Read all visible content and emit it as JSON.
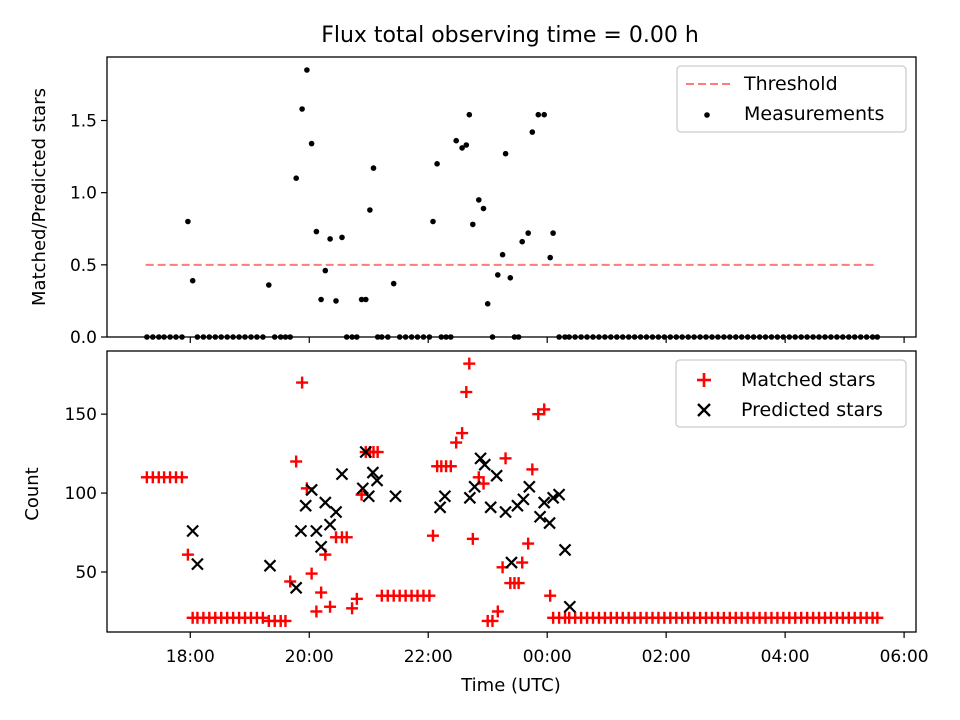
{
  "chart_data": [
    {
      "type": "scatter",
      "title": "Flux total observing time = 0.00 h",
      "xlabel": "",
      "ylabel": "Matched/Predicted stars",
      "xlim": [
        16.6,
        30.2
      ],
      "ylim": [
        0.0,
        1.94
      ],
      "yticks": [
        0.0,
        0.5,
        1.0,
        1.5
      ],
      "ytick_labels": [
        "0.0",
        "0.5",
        "1.0",
        "1.5"
      ],
      "threshold": {
        "name": "Threshold",
        "value": 0.5,
        "x_range": [
          17.25,
          29.55
        ],
        "color": "#ff7b7b"
      },
      "series": [
        {
          "name": "Measurements",
          "color": "#000000",
          "x": [
            17.27,
            17.37,
            17.47,
            17.56,
            17.66,
            17.76,
            17.86,
            17.96,
            18.04,
            18.12,
            18.22,
            18.32,
            18.42,
            18.52,
            18.62,
            18.72,
            18.82,
            18.92,
            19.02,
            19.12,
            19.22,
            19.32,
            19.42,
            19.52,
            19.6,
            19.68,
            19.78,
            19.88,
            19.96,
            20.04,
            20.12,
            20.2,
            20.27,
            20.35,
            20.45,
            20.55,
            20.63,
            20.72,
            20.8,
            20.88,
            20.95,
            21.02,
            21.08,
            21.15,
            21.22,
            21.32,
            21.42,
            21.52,
            21.62,
            21.72,
            21.82,
            21.92,
            22.02,
            22.08,
            22.15,
            22.22,
            22.3,
            22.38,
            22.47,
            22.57,
            22.64,
            22.69,
            22.75,
            22.85,
            22.93,
            23.0,
            23.08,
            23.17,
            23.25,
            23.3,
            23.38,
            23.45,
            23.52,
            23.58,
            23.68,
            23.75,
            23.85,
            23.95,
            24.05,
            24.1,
            24.2,
            24.3,
            24.37,
            24.47,
            24.57,
            24.67,
            24.77,
            24.87,
            24.97,
            25.07,
            25.17,
            25.27,
            25.37,
            25.47,
            25.57,
            25.67,
            25.77,
            25.87,
            25.97,
            26.07,
            26.17,
            26.27,
            26.37,
            26.47,
            26.57,
            26.67,
            26.77,
            26.87,
            26.97,
            27.07,
            27.17,
            27.27,
            27.37,
            27.47,
            27.57,
            27.67,
            27.77,
            27.87,
            27.97,
            28.07,
            28.17,
            28.27,
            28.37,
            28.47,
            28.57,
            28.67,
            28.77,
            28.87,
            28.97,
            29.07,
            29.17,
            29.27,
            29.37,
            29.47,
            29.55
          ],
          "y": [
            0,
            0,
            0,
            0,
            0,
            0,
            0,
            0.8,
            0.39,
            0,
            0,
            0,
            0,
            0,
            0,
            0,
            0,
            0,
            0,
            0,
            0,
            0.36,
            0,
            0,
            0,
            0,
            1.1,
            1.58,
            1.85,
            1.34,
            0.73,
            0.26,
            0.46,
            0.68,
            0.25,
            0.69,
            0,
            0,
            0,
            0.26,
            0.26,
            0.88,
            1.17,
            0,
            0,
            0,
            0.37,
            0,
            0,
            0,
            0,
            0,
            0,
            0.8,
            1.2,
            0,
            0,
            0,
            1.36,
            1.31,
            1.33,
            1.54,
            0.78,
            0.95,
            0.89,
            0.23,
            0,
            0.43,
            0.57,
            1.27,
            0.41,
            0,
            0,
            0.66,
            0.72,
            1.42,
            1.54,
            1.54,
            0.55,
            0.72,
            0,
            0,
            0,
            0,
            0,
            0,
            0,
            0,
            0,
            0,
            0,
            0,
            0,
            0,
            0,
            0,
            0,
            0,
            0,
            0,
            0,
            0,
            0,
            0,
            0,
            0,
            0,
            0,
            0,
            0,
            0,
            0,
            0,
            0,
            0,
            0,
            0,
            0,
            0,
            0,
            0,
            0,
            0,
            0,
            0,
            0,
            0,
            0,
            0,
            0,
            0,
            0,
            0,
            0,
            0
          ]
        }
      ],
      "legend": {
        "position": "top-right",
        "entries": [
          "Threshold",
          "Measurements"
        ]
      }
    },
    {
      "type": "scatter",
      "title": "",
      "xlabel": "Time (UTC)",
      "ylabel": "Count",
      "xlim": [
        16.6,
        30.2
      ],
      "ylim": [
        12,
        190
      ],
      "yticks": [
        50,
        100,
        150
      ],
      "ytick_labels": [
        "50",
        "100",
        "150"
      ],
      "xticks": [
        18,
        20,
        22,
        24,
        26,
        28,
        30
      ],
      "xtick_labels": [
        "18:00",
        "20:00",
        "22:00",
        "00:00",
        "02:00",
        "04:00",
        "06:00"
      ],
      "series": [
        {
          "name": "Matched stars",
          "color": "#ff0000",
          "marker": "plus",
          "x": [
            17.27,
            17.37,
            17.47,
            17.56,
            17.66,
            17.76,
            17.86,
            17.96,
            18.04,
            18.12,
            18.22,
            18.32,
            18.42,
            18.52,
            18.62,
            18.72,
            18.82,
            18.92,
            19.02,
            19.12,
            19.22,
            19.32,
            19.42,
            19.52,
            19.6,
            19.68,
            19.78,
            19.88,
            19.96,
            20.04,
            20.12,
            20.2,
            20.27,
            20.35,
            20.45,
            20.55,
            20.63,
            20.72,
            20.8,
            20.88,
            20.95,
            21.02,
            21.08,
            21.15,
            21.22,
            21.32,
            21.42,
            21.52,
            21.62,
            21.72,
            21.82,
            21.92,
            22.02,
            22.08,
            22.15,
            22.22,
            22.3,
            22.38,
            22.47,
            22.57,
            22.64,
            22.69,
            22.75,
            22.85,
            22.93,
            23.0,
            23.08,
            23.17,
            23.25,
            23.3,
            23.38,
            23.45,
            23.52,
            23.58,
            23.68,
            23.75,
            23.85,
            23.95,
            24.05,
            24.1,
            24.2,
            24.3,
            24.37,
            24.47,
            24.57,
            24.67,
            24.77,
            24.87,
            24.97,
            25.07,
            25.17,
            25.27,
            25.37,
            25.47,
            25.57,
            25.67,
            25.77,
            25.87,
            25.97,
            26.07,
            26.17,
            26.27,
            26.37,
            26.47,
            26.57,
            26.67,
            26.77,
            26.87,
            26.97,
            27.07,
            27.17,
            27.27,
            27.37,
            27.47,
            27.57,
            27.67,
            27.77,
            27.87,
            27.97,
            28.07,
            28.17,
            28.27,
            28.37,
            28.47,
            28.57,
            28.67,
            28.77,
            28.87,
            28.97,
            29.07,
            29.17,
            29.27,
            29.37,
            29.47,
            29.55
          ],
          "y": [
            110,
            110,
            110,
            110,
            110,
            110,
            110,
            61,
            21,
            21,
            21,
            21,
            21,
            21,
            21,
            21,
            21,
            21,
            21,
            21,
            21,
            19,
            19,
            19,
            19,
            44,
            120,
            170,
            103,
            49,
            25,
            37,
            61,
            28,
            72,
            72,
            72,
            27,
            33,
            99,
            126,
            126,
            126,
            126,
            35,
            35,
            35,
            35,
            35,
            35,
            35,
            35,
            35,
            73,
            117,
            117,
            117,
            117,
            132,
            138,
            164,
            182,
            71,
            110,
            106,
            19,
            19,
            25,
            53,
            122,
            43,
            43,
            43,
            56,
            68,
            115,
            150,
            153,
            35,
            21,
            21,
            21,
            21,
            21,
            21,
            21,
            21,
            21,
            21,
            21,
            21,
            21,
            21,
            21,
            21,
            21,
            21,
            21,
            21,
            21,
            21,
            21,
            21,
            21,
            21,
            21,
            21,
            21,
            21,
            21,
            21,
            21,
            21,
            21,
            21,
            21,
            21,
            21,
            21,
            21,
            21,
            21,
            21,
            21,
            21,
            21,
            21,
            21,
            21,
            21,
            21,
            21,
            21,
            21,
            21
          ]
        },
        {
          "name": "Predicted stars",
          "color": "#000000",
          "marker": "x",
          "x": [
            18.04,
            18.12,
            19.34,
            19.78,
            19.86,
            19.94,
            20.04,
            20.12,
            20.2,
            20.27,
            20.35,
            20.45,
            20.55,
            20.9,
            20.95,
            21.0,
            21.07,
            21.14,
            21.45,
            22.2,
            22.28,
            22.7,
            22.78,
            22.88,
            22.95,
            23.05,
            23.15,
            23.3,
            23.4,
            23.5,
            23.6,
            23.7,
            23.88,
            23.95,
            24.04,
            24.1,
            24.2,
            24.3,
            24.38
          ],
          "y": [
            76,
            55,
            54,
            40,
            76,
            92,
            102,
            76,
            66,
            94,
            80,
            88,
            112,
            103,
            126,
            98,
            113,
            108,
            98,
            91,
            98,
            97,
            104,
            122,
            118,
            91,
            111,
            88,
            56,
            92,
            96,
            104,
            85,
            94,
            81,
            97,
            99,
            64,
            28
          ]
        }
      ],
      "legend": {
        "position": "top-right",
        "entries": [
          "Matched stars",
          "Predicted stars"
        ]
      }
    }
  ]
}
